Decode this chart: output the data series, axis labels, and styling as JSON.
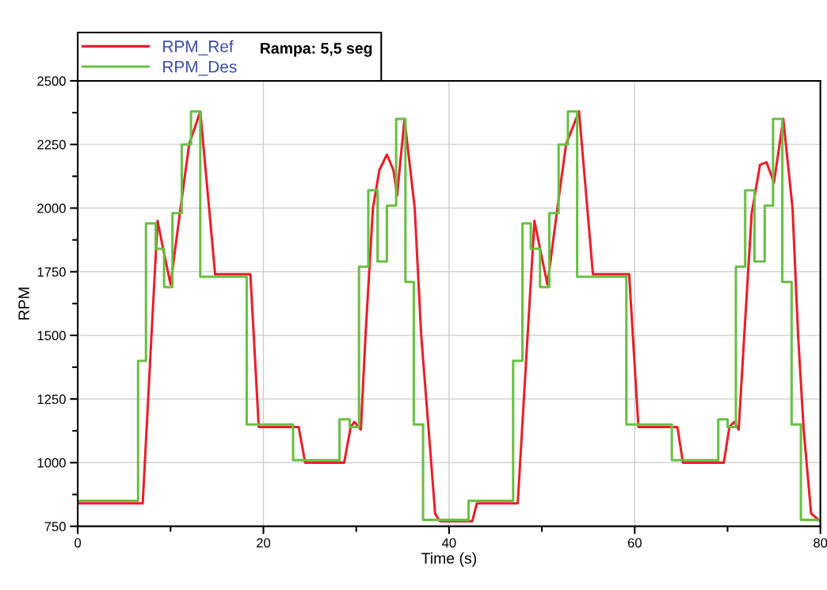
{
  "chart_data": {
    "type": "line",
    "xlabel": "Time (s)",
    "ylabel": "RPM",
    "xlim": [
      0,
      80
    ],
    "ylim": [
      750,
      2500
    ],
    "xticks": [
      0,
      {
        "value": 10,
        "label": null
      },
      20,
      {
        "value": 30,
        "label": null
      },
      40,
      {
        "value": 50,
        "label": null
      },
      60,
      {
        "value": 70,
        "label": null
      },
      80
    ],
    "yticks": [
      750,
      {
        "value": 875,
        "label": null
      },
      1000,
      {
        "value": 1125,
        "label": null
      },
      1250,
      {
        "value": 1375,
        "label": null
      },
      1500,
      {
        "value": 1625,
        "label": null
      },
      1750,
      {
        "value": 1875,
        "label": null
      },
      2000,
      {
        "value": 2125,
        "label": null
      },
      2250,
      {
        "value": 2375,
        "label": null
      },
      2500
    ],
    "grid": true,
    "legend": "top left",
    "annotations": [
      "Rampa: 5,5 seg"
    ],
    "series": [
      {
        "name": "RPM_Ref",
        "color": "#e8202a",
        "x": [
          0,
          7.0,
          7.8,
          8.6,
          9.2,
          10.0,
          11.0,
          12.0,
          13.2,
          14.8,
          18.6,
          19.5,
          23.8,
          24.5,
          28.7,
          29.4,
          29.8,
          30.5,
          31.0,
          31.8,
          32.5,
          33.3,
          34.0,
          34.4,
          35.2,
          36.3,
          37.0,
          37.8,
          38.5,
          39.0,
          42.5,
          43.0,
          47.4,
          48.3,
          49.2,
          49.8,
          50.6,
          51.6,
          52.6,
          54.0,
          55.5,
          59.4,
          60.4,
          64.6,
          65.2,
          69.6,
          70.2,
          70.7,
          71.2,
          71.8,
          72.6,
          73.5,
          74.2,
          75.0,
          76.0,
          77.0,
          77.6,
          78.2,
          79.0,
          80
        ],
        "values": [
          840,
          840,
          1400,
          1950,
          1840,
          1700,
          1980,
          2250,
          2380,
          1740,
          1740,
          1140,
          1140,
          1000,
          1000,
          1140,
          1160,
          1130,
          1500,
          2000,
          2150,
          2210,
          2150,
          2050,
          2350,
          2000,
          1500,
          1130,
          800,
          770,
          770,
          840,
          840,
          1400,
          1950,
          1840,
          1700,
          1980,
          2250,
          2380,
          1740,
          1740,
          1140,
          1140,
          1000,
          1000,
          1140,
          1160,
          1130,
          1500,
          1980,
          2170,
          2180,
          2100,
          2350,
          2000,
          1500,
          1130,
          800,
          770
        ]
      },
      {
        "name": "RPM_Des",
        "type": "step",
        "color": "#6abf45",
        "x": [
          0,
          6.5,
          7.35,
          8.4,
          9.3,
          10.2,
          11.2,
          12.2,
          13.2,
          18.2,
          23.2,
          28.2,
          29.3,
          30.3,
          31.3,
          32.3,
          33.3,
          34.3,
          35.3,
          36.2,
          37.2,
          42.1,
          46.9,
          47.9,
          48.8,
          49.8,
          50.8,
          51.8,
          52.8,
          53.8,
          59.1,
          64.0,
          69.0,
          70.0,
          70.9,
          71.9,
          72.9,
          74.0,
          74.9,
          75.9,
          76.9,
          77.9,
          80
        ],
        "values": [
          850,
          1400,
          1940,
          1840,
          1690,
          1980,
          2250,
          2380,
          1730,
          1150,
          1010,
          1170,
          1140,
          1770,
          2070,
          1790,
          2010,
          2350,
          1710,
          1150,
          775,
          850,
          1400,
          1940,
          1840,
          1690,
          1980,
          2250,
          2380,
          1730,
          1150,
          1010,
          1170,
          1140,
          1770,
          2070,
          1790,
          2010,
          2350,
          1710,
          1150,
          775,
          775
        ]
      }
    ]
  }
}
